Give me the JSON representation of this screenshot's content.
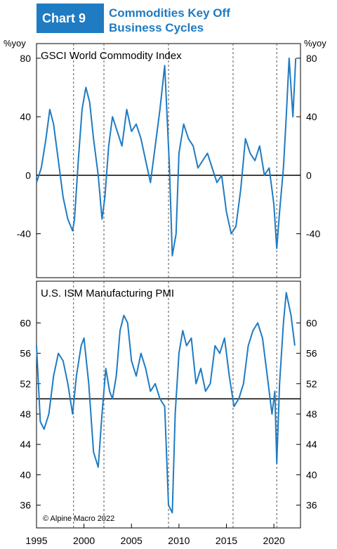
{
  "header": {
    "badge": "Chart 9",
    "title_line1": "Commodities Key Off",
    "title_line2": "Business Cycles"
  },
  "colors": {
    "accent": "#1f7bc2",
    "series": "#1f7bc2",
    "axis": "#000000",
    "recession": "#555555"
  },
  "chart_data": [
    {
      "type": "line",
      "title": "GSCI World Commodity Index",
      "ylabel_left": "%yoy",
      "ylabel_right": "%yoy",
      "ylim": [
        -70,
        90
      ],
      "yticks": [
        -40,
        0,
        40,
        80
      ],
      "xlim": [
        1995,
        2022.8
      ],
      "grid": false,
      "zero_line": 0,
      "recession_lines": [
        1998.9,
        2002.1,
        2008.9,
        2015.7,
        2020.3
      ],
      "series": [
        {
          "x": [
            1995,
            1995.5,
            1996,
            1996.4,
            1996.8,
            1997.3,
            1997.8,
            1998.3,
            1998.8,
            1999.0,
            1999.4,
            1999.8,
            2000.2,
            2000.6,
            2001.0,
            2001.5,
            2001.9,
            2002.2,
            2002.6,
            2003.0,
            2003.5,
            2004.0,
            2004.5,
            2005.0,
            2005.5,
            2006.0,
            2006.5,
            2007.0,
            2007.5,
            2008.0,
            2008.5,
            2009.0,
            2009.3,
            2009.7,
            2010.0,
            2010.5,
            2011.0,
            2011.5,
            2012.0,
            2012.5,
            2013.0,
            2013.5,
            2014.0,
            2014.5,
            2015.0,
            2015.5,
            2016.0,
            2016.5,
            2017.0,
            2017.5,
            2018.0,
            2018.5,
            2019.0,
            2019.5,
            2020.0,
            2020.3,
            2020.6,
            2021.0,
            2021.3,
            2021.6,
            2022.0,
            2022.3
          ],
          "values": [
            -5,
            5,
            25,
            45,
            35,
            10,
            -15,
            -30,
            -38,
            -30,
            10,
            45,
            60,
            50,
            25,
            0,
            -30,
            -15,
            20,
            40,
            30,
            20,
            45,
            30,
            35,
            25,
            10,
            -5,
            20,
            45,
            75,
            5,
            -55,
            -40,
            15,
            35,
            25,
            20,
            5,
            10,
            15,
            5,
            -5,
            0,
            -25,
            -40,
            -35,
            -10,
            25,
            15,
            10,
            20,
            0,
            5,
            -20,
            -50,
            -25,
            5,
            40,
            80,
            40,
            80
          ]
        }
      ]
    },
    {
      "type": "line",
      "title": "U.S. ISM Manufacturing PMI",
      "ylim": [
        33,
        65.5
      ],
      "yticks": [
        36,
        40,
        44,
        48,
        52,
        56,
        60
      ],
      "xlim": [
        1995,
        2022.8
      ],
      "xticks": [
        1995,
        2000,
        2005,
        2010,
        2015,
        2020
      ],
      "grid": false,
      "reference_line": 50,
      "recession_lines": [
        1998.9,
        2002.1,
        2008.9,
        2015.7,
        2020.3
      ],
      "annotation": "© Alpine Macro 2022",
      "series": [
        {
          "x": [
            1995,
            1995.4,
            1995.8,
            1996.3,
            1996.8,
            1997.3,
            1997.8,
            1998.3,
            1998.8,
            1999.2,
            1999.7,
            2000.0,
            2000.5,
            2001.0,
            2001.5,
            2001.9,
            2002.3,
            2002.7,
            2003.0,
            2003.4,
            2003.8,
            2004.2,
            2004.6,
            2005.0,
            2005.5,
            2006.0,
            2006.5,
            2007.0,
            2007.5,
            2008.0,
            2008.5,
            2008.9,
            2009.3,
            2009.6,
            2010.0,
            2010.4,
            2010.8,
            2011.3,
            2011.8,
            2012.3,
            2012.8,
            2013.3,
            2013.8,
            2014.3,
            2014.8,
            2015.3,
            2015.8,
            2016.3,
            2016.8,
            2017.3,
            2017.8,
            2018.3,
            2018.8,
            2019.3,
            2019.8,
            2020.1,
            2020.3,
            2020.6,
            2021.0,
            2021.3,
            2021.8,
            2022.2
          ],
          "values": [
            57,
            47,
            46,
            48,
            53,
            56,
            55,
            52,
            48,
            53,
            57,
            58,
            52,
            43,
            41,
            48,
            54,
            51,
            50,
            53,
            59,
            61,
            60,
            55,
            53,
            56,
            54,
            51,
            52,
            50,
            49,
            36,
            35,
            48,
            56,
            59,
            57,
            58,
            52,
            54,
            51,
            52,
            57,
            56,
            58,
            53,
            49,
            50,
            52,
            57,
            59,
            60,
            58,
            53,
            48,
            51,
            41.5,
            52,
            60,
            64,
            61,
            57
          ]
        }
      ]
    }
  ]
}
